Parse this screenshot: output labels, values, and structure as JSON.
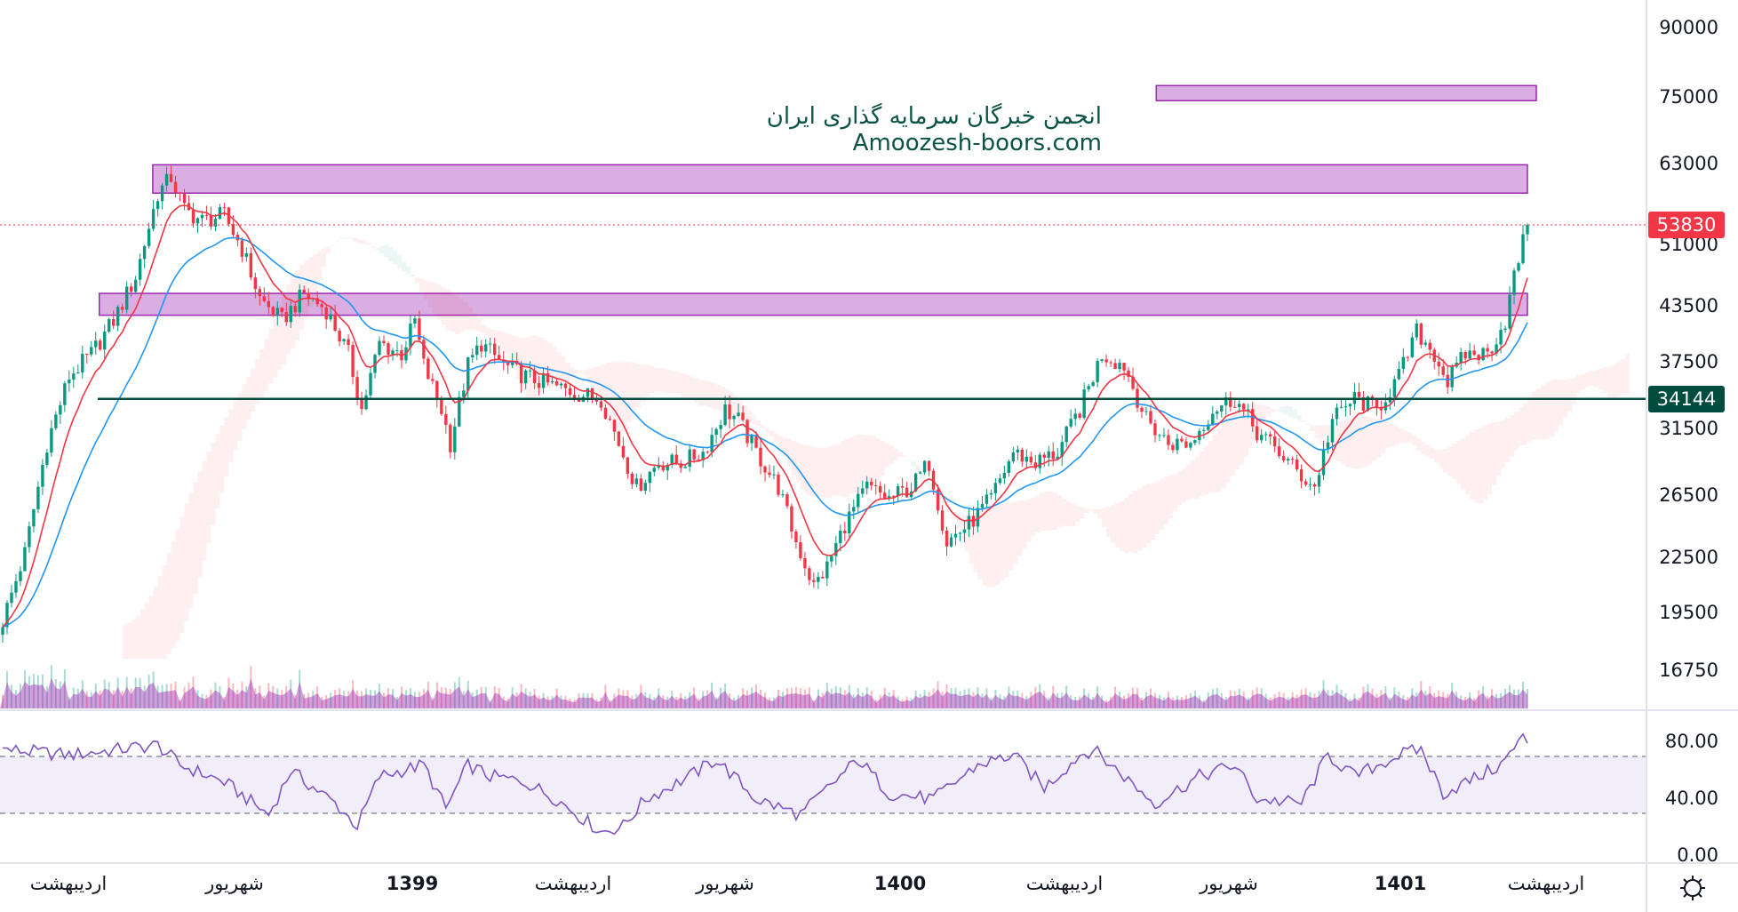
{
  "watermark": {
    "line1": "انجمن خبرگان سرمایه گذاری ایران",
    "line2": "Amoozesh-boors.com"
  },
  "price_axis": [
    "90000",
    "75000",
    "63000",
    "51000",
    "43500",
    "37500",
    "31500",
    "26500",
    "22500",
    "19500",
    "16750"
  ],
  "price_axis_values": [
    90000,
    75000,
    63000,
    51000,
    43500,
    37500,
    31500,
    26500,
    22500,
    19500,
    16750
  ],
  "rsi_axis": [
    "80.00",
    "40.00",
    "0.00"
  ],
  "rsi_axis_values": [
    80,
    40,
    0
  ],
  "last_price": {
    "label": "53830",
    "value": 53830,
    "color": "#f23645"
  },
  "support_level": {
    "label": "34144",
    "value": 34144,
    "color": "#004d40"
  },
  "time_axis": [
    {
      "label": "اردیبهشت",
      "year": false
    },
    {
      "label": "شهریور",
      "year": false
    },
    {
      "label": "1399",
      "year": true
    },
    {
      "label": "اردیبهشت",
      "year": false
    },
    {
      "label": "شهریور",
      "year": false
    },
    {
      "label": "1400",
      "year": true
    },
    {
      "label": "اردیبهشت",
      "year": false
    },
    {
      "label": "شهریور",
      "year": false
    },
    {
      "label": "1401",
      "year": true
    },
    {
      "label": "اردیبهشت",
      "year": false
    }
  ],
  "colors": {
    "up": "#089981",
    "down": "#f23645",
    "ma_fast": "#f23645",
    "ma_slow": "#2196f3",
    "rsi": "#7e57c2",
    "zone": "#ce93d8",
    "zone_border": "#9c27b0"
  },
  "chart_data": {
    "type": "candlestick",
    "scale": "log",
    "ylim": [
      15500,
      95000
    ],
    "bars": 345,
    "close_keypoints": [
      [
        0,
        19100
      ],
      [
        5,
        22800
      ],
      [
        10,
        30400
      ],
      [
        15,
        36200
      ],
      [
        20,
        38400
      ],
      [
        25,
        41900
      ],
      [
        30,
        47000
      ],
      [
        35,
        58400
      ],
      [
        38,
        61000
      ],
      [
        41,
        56000
      ],
      [
        45,
        54400
      ],
      [
        50,
        55200
      ],
      [
        54,
        50600
      ],
      [
        58,
        44400
      ],
      [
        63,
        41900
      ],
      [
        68,
        45000
      ],
      [
        73,
        43100
      ],
      [
        78,
        38400
      ],
      [
        81,
        33200
      ],
      [
        85,
        39500
      ],
      [
        90,
        38400
      ],
      [
        93,
        41900
      ],
      [
        95,
        37300
      ],
      [
        99,
        33200
      ],
      [
        101,
        30400
      ],
      [
        105,
        37300
      ],
      [
        108,
        39500
      ],
      [
        113,
        37300
      ],
      [
        118,
        36200
      ],
      [
        125,
        35200
      ],
      [
        130,
        34600
      ],
      [
        135,
        34200
      ],
      [
        139,
        30400
      ],
      [
        143,
        27100
      ],
      [
        148,
        28900
      ],
      [
        153,
        28900
      ],
      [
        158,
        29700
      ],
      [
        163,
        33200
      ],
      [
        166,
        32300
      ],
      [
        170,
        29700
      ],
      [
        175,
        27100
      ],
      [
        179,
        23500
      ],
      [
        183,
        20900
      ],
      [
        186,
        22000
      ],
      [
        190,
        24600
      ],
      [
        195,
        27100
      ],
      [
        200,
        26300
      ],
      [
        205,
        27100
      ],
      [
        209,
        28900
      ],
      [
        213,
        23500
      ],
      [
        218,
        24600
      ],
      [
        223,
        26300
      ],
      [
        228,
        29700
      ],
      [
        233,
        28900
      ],
      [
        238,
        29700
      ],
      [
        243,
        33200
      ],
      [
        248,
        38400
      ],
      [
        253,
        37300
      ],
      [
        258,
        32300
      ],
      [
        263,
        30400
      ],
      [
        268,
        30400
      ],
      [
        273,
        33200
      ],
      [
        278,
        34200
      ],
      [
        283,
        31300
      ],
      [
        288,
        29700
      ],
      [
        293,
        27900
      ],
      [
        296,
        27100
      ],
      [
        300,
        32300
      ],
      [
        305,
        34200
      ],
      [
        310,
        33200
      ],
      [
        315,
        36200
      ],
      [
        319,
        40700
      ],
      [
        323,
        38400
      ],
      [
        326,
        35700
      ],
      [
        330,
        38400
      ],
      [
        335,
        38400
      ],
      [
        339,
        41900
      ],
      [
        341,
        47000
      ],
      [
        344,
        53830
      ]
    ],
    "zones": [
      [
        74500,
        77500,
        0.757,
        1.0
      ],
      [
        58500,
        63000,
        0.1,
        1.0
      ],
      [
        42500,
        45000,
        0.065,
        1.0
      ]
    ],
    "rsi_keypoints": [
      [
        0,
        75
      ],
      [
        15,
        71
      ],
      [
        35,
        78
      ],
      [
        40,
        64
      ],
      [
        50,
        52
      ],
      [
        60,
        29
      ],
      [
        65,
        60
      ],
      [
        75,
        37
      ],
      [
        80,
        21
      ],
      [
        85,
        56
      ],
      [
        95,
        64
      ],
      [
        100,
        33
      ],
      [
        105,
        64
      ],
      [
        110,
        56
      ],
      [
        118,
        52
      ],
      [
        125,
        40
      ],
      [
        135,
        17
      ],
      [
        140,
        21
      ],
      [
        145,
        40
      ],
      [
        155,
        56
      ],
      [
        161,
        68
      ],
      [
        170,
        40
      ],
      [
        180,
        29
      ],
      [
        193,
        68
      ],
      [
        200,
        44
      ],
      [
        210,
        40
      ],
      [
        220,
        64
      ],
      [
        228,
        71
      ],
      [
        235,
        48
      ],
      [
        243,
        71
      ],
      [
        246,
        75
      ],
      [
        253,
        56
      ],
      [
        260,
        37
      ],
      [
        270,
        56
      ],
      [
        278,
        64
      ],
      [
        283,
        40
      ],
      [
        293,
        37
      ],
      [
        299,
        71
      ],
      [
        305,
        56
      ],
      [
        315,
        71
      ],
      [
        320,
        75
      ],
      [
        325,
        44
      ],
      [
        333,
        56
      ],
      [
        338,
        64
      ],
      [
        343,
        83
      ],
      [
        345,
        78
      ]
    ],
    "rsi_bands": [
      70,
      30
    ]
  }
}
